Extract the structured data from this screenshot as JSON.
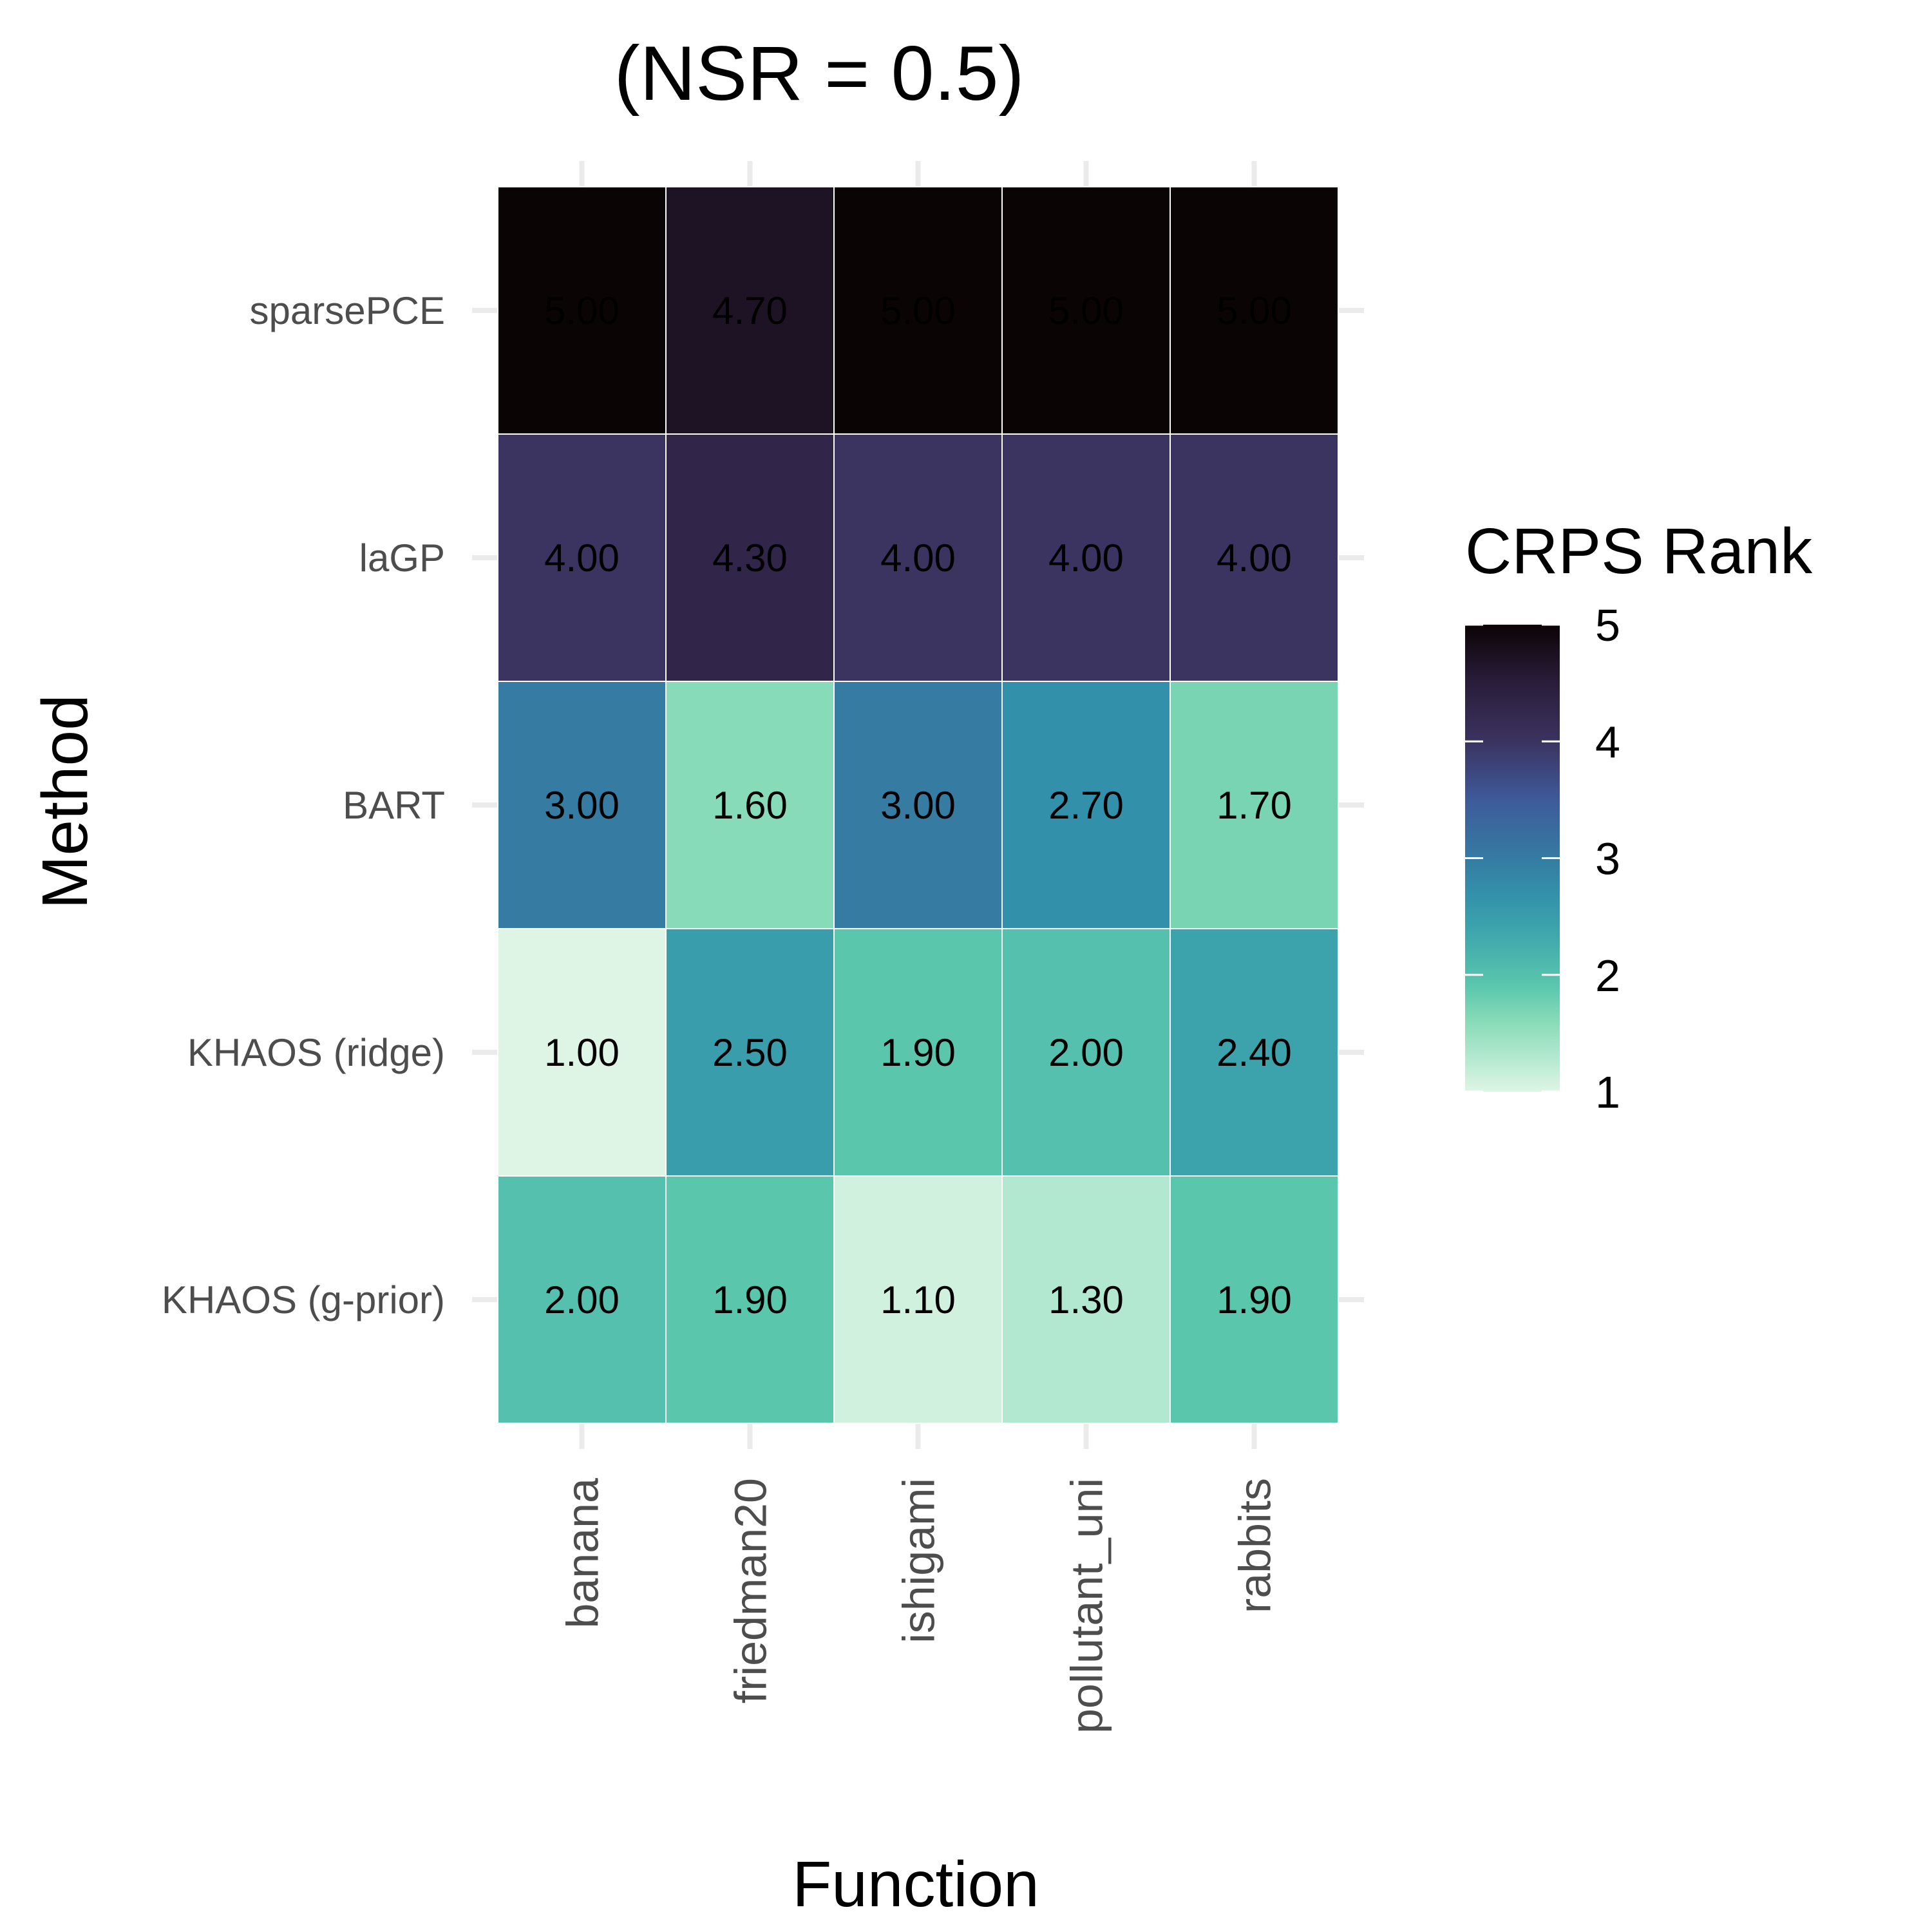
{
  "chart_data": {
    "type": "heatmap",
    "title": "(NSR = 0.5)",
    "xlabel": "Function",
    "ylabel": "Method",
    "x_categories": [
      "banana",
      "friedman20",
      "ishigami",
      "pollutant_uni",
      "rabbits"
    ],
    "y_categories": [
      "sparsePCE",
      "laGP",
      "BART",
      "KHAOS (ridge)",
      "KHAOS (g-prior)"
    ],
    "values": [
      [
        5.0,
        4.7,
        5.0,
        5.0,
        5.0
      ],
      [
        4.0,
        4.3,
        4.0,
        4.0,
        4.0
      ],
      [
        3.0,
        1.6,
        3.0,
        2.7,
        1.7
      ],
      [
        1.0,
        2.5,
        1.9,
        2.0,
        2.4
      ],
      [
        2.0,
        1.9,
        1.1,
        1.3,
        1.9
      ]
    ],
    "value_labels": [
      [
        "5.00",
        "4.70",
        "5.00",
        "5.00",
        "5.00"
      ],
      [
        "4.00",
        "4.30",
        "4.00",
        "4.00",
        "4.00"
      ],
      [
        "3.00",
        "1.60",
        "3.00",
        "2.70",
        "1.70"
      ],
      [
        "1.00",
        "2.50",
        "1.90",
        "2.00",
        "2.40"
      ],
      [
        "2.00",
        "1.90",
        "1.10",
        "1.30",
        "1.90"
      ]
    ],
    "legend": {
      "title": "CRPS Rank",
      "placement": "right",
      "range": [
        1,
        5
      ],
      "ticks": [
        "1",
        "2",
        "3",
        "4",
        "5"
      ]
    },
    "color_scale": [
      {
        "value": 1.0,
        "color": "#def5e5"
      },
      {
        "value": 1.3,
        "color": "#b2e8cf"
      },
      {
        "value": 1.6,
        "color": "#88dbb8"
      },
      {
        "value": 1.9,
        "color": "#5ac7ad"
      },
      {
        "value": 2.4,
        "color": "#3ca3ac"
      },
      {
        "value": 2.7,
        "color": "#3390aa"
      },
      {
        "value": 3.0,
        "color": "#357ba2"
      },
      {
        "value": 3.5,
        "color": "#3e5a9a"
      },
      {
        "value": 4.0,
        "color": "#3b3360"
      },
      {
        "value": 4.5,
        "color": "#2a1d3b"
      },
      {
        "value": 5.0,
        "color": "#0b0405"
      }
    ],
    "grid": true
  }
}
